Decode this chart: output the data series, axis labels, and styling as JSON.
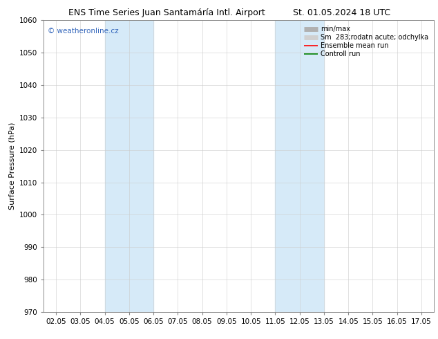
{
  "title_left": "ENS Time Series Juan Santamáría Intl. Airport",
  "title_right": "St. 01.05.2024 18 UTC",
  "ylabel": "Surface Pressure (hPa)",
  "ylim": [
    970,
    1060
  ],
  "yticks": [
    970,
    980,
    990,
    1000,
    1010,
    1020,
    1030,
    1040,
    1050,
    1060
  ],
  "xtick_labels": [
    "02.05",
    "03.05",
    "04.05",
    "05.05",
    "06.05",
    "07.05",
    "08.05",
    "09.05",
    "10.05",
    "11.05",
    "12.05",
    "13.05",
    "14.05",
    "15.05",
    "16.05",
    "17.05"
  ],
  "xtick_values": [
    0,
    1,
    2,
    3,
    4,
    5,
    6,
    7,
    8,
    9,
    10,
    11,
    12,
    13,
    14,
    15
  ],
  "shade_bands": [
    {
      "x_start": 2,
      "x_end": 3,
      "color": "#d6eaf8"
    },
    {
      "x_start": 3,
      "x_end": 4,
      "color": "#d6eaf8"
    },
    {
      "x_start": 9,
      "x_end": 10,
      "color": "#d6eaf8"
    },
    {
      "x_start": 10,
      "x_end": 11,
      "color": "#d6eaf8"
    }
  ],
  "legend_entries": [
    {
      "label": "min/max",
      "color": "#b0b0b0",
      "lw": 5,
      "ls": "-"
    },
    {
      "label": "283;rodatn acute; odchylka",
      "color": "#d0d0d0",
      "lw": 5,
      "ls": "-"
    },
    {
      "label": "Ensemble mean run",
      "color": "red",
      "lw": 1.2,
      "ls": "-"
    },
    {
      "label": "Controll run",
      "color": "green",
      "lw": 1.2,
      "ls": "-"
    }
  ],
  "legend_prefix": "Sm  ",
  "watermark": "© weatheronline.cz",
  "watermark_color": "#3366bb",
  "background_color": "#ffffff",
  "plot_bg_color": "#ffffff",
  "grid_color": "#cccccc",
  "spine_color": "#888888",
  "title_fontsize": 9,
  "ylabel_fontsize": 8,
  "tick_fontsize": 7.5,
  "legend_fontsize": 7
}
